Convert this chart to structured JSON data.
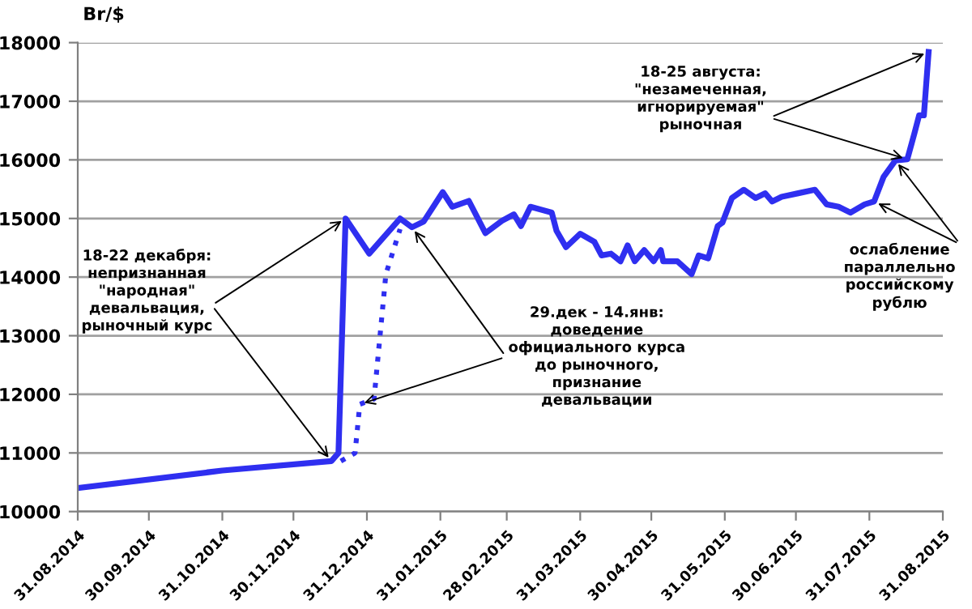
{
  "chart_data": {
    "type": "line",
    "ylabel": "Br/$",
    "xlim": [
      "2014-08-31",
      "2015-08-31"
    ],
    "xticks": [
      {
        "value": "2014-08-31",
        "label": "31.08.2014"
      },
      {
        "value": "2014-09-30",
        "label": "30.09.2014"
      },
      {
        "value": "2014-10-31",
        "label": "31.10.2014"
      },
      {
        "value": "2014-11-30",
        "label": "30.11.2014"
      },
      {
        "value": "2014-12-31",
        "label": "31.12.2014"
      },
      {
        "value": "2015-01-31",
        "label": "31.01.2015"
      },
      {
        "value": "2015-02-28",
        "label": "28.02.2015"
      },
      {
        "value": "2015-03-31",
        "label": "31.03.2015"
      },
      {
        "value": "2015-04-30",
        "label": "30.04.2015"
      },
      {
        "value": "2015-05-31",
        "label": "31.05.2015"
      },
      {
        "value": "2015-06-30",
        "label": "30.06.2015"
      },
      {
        "value": "2015-07-31",
        "label": "31.07.2015"
      },
      {
        "value": "2015-08-31",
        "label": "31.08.2015"
      }
    ],
    "ylim": [
      10000,
      18000
    ],
    "yticks": [
      10000,
      11000,
      12000,
      13000,
      14000,
      15000,
      16000,
      17000,
      18000
    ],
    "grid": "y",
    "series": [
      {
        "color": "#2f2ff0",
        "line_style": "solid",
        "x": [
          "2014-08-31",
          "2014-10-31",
          "2014-12-16",
          "2014-12-19",
          "2014-12-22",
          "2015-01-01",
          "2015-01-14",
          "2015-01-19",
          "2015-01-24",
          "2015-02-01",
          "2015-02-05",
          "2015-02-12",
          "2015-02-19",
          "2015-02-26",
          "2015-03-03",
          "2015-03-06",
          "2015-03-10",
          "2015-03-19",
          "2015-03-21",
          "2015-03-25",
          "2015-03-31",
          "2015-04-06",
          "2015-04-09",
          "2015-04-13",
          "2015-04-17",
          "2015-04-20",
          "2015-04-23",
          "2015-04-27",
          "2015-05-01",
          "2015-05-04",
          "2015-05-05",
          "2015-05-11",
          "2015-05-17",
          "2015-05-20",
          "2015-05-24",
          "2015-05-28",
          "2015-05-30",
          "2015-06-03",
          "2015-06-08",
          "2015-06-13",
          "2015-06-17",
          "2015-06-20",
          "2015-06-24",
          "2015-07-01",
          "2015-07-08",
          "2015-07-13",
          "2015-07-18",
          "2015-07-23",
          "2015-07-29",
          "2015-08-02",
          "2015-08-06",
          "2015-08-11",
          "2015-08-16",
          "2015-08-19",
          "2015-08-21",
          "2015-08-23",
          "2015-08-25"
        ],
        "values": [
          10400,
          10700,
          10860,
          11000,
          15000,
          14400,
          15000,
          14850,
          14950,
          15450,
          15200,
          15300,
          14750,
          14960,
          15070,
          14870,
          15200,
          15100,
          14790,
          14510,
          14740,
          14600,
          14370,
          14400,
          14270,
          14540,
          14270,
          14460,
          14270,
          14460,
          14270,
          14270,
          14050,
          14370,
          14320,
          14870,
          14930,
          15350,
          15490,
          15350,
          15430,
          15290,
          15370,
          15430,
          15490,
          15240,
          15200,
          15100,
          15240,
          15290,
          15710,
          15990,
          16010,
          16450,
          16760,
          16760,
          17840
        ]
      },
      {
        "color": "#2f2ff0",
        "line_style": "dotted",
        "x": [
          "2014-12-20",
          "2014-12-26",
          "2014-12-28",
          "2015-01-03",
          "2015-01-08",
          "2015-01-14"
        ],
        "values": [
          10860,
          11000,
          11830,
          11920,
          14050,
          14820
        ]
      }
    ],
    "annotations": [
      {
        "text": "18-22 декабря:\nнепризнанная\n\"народная\"\nдевальвация,\nрыночный курс",
        "x": "2014-12-22",
        "y": 15000
      },
      {
        "text": "29.дек - 14.янв:\nдоведение\nофициального курса\nдо рыночного,\nпризнание\nдевальвации",
        "x": "2014-12-28",
        "y": 11830
      },
      {
        "text": "18-25 августа:\n\"незамеченная,\nигнорируемая\"\nрыночная",
        "x": "2015-08-25",
        "y": 17840
      },
      {
        "text": "ослабление\nпараллельно\nроссийскому\nрублю",
        "x": "2015-08-02",
        "y": 15290
      }
    ]
  }
}
